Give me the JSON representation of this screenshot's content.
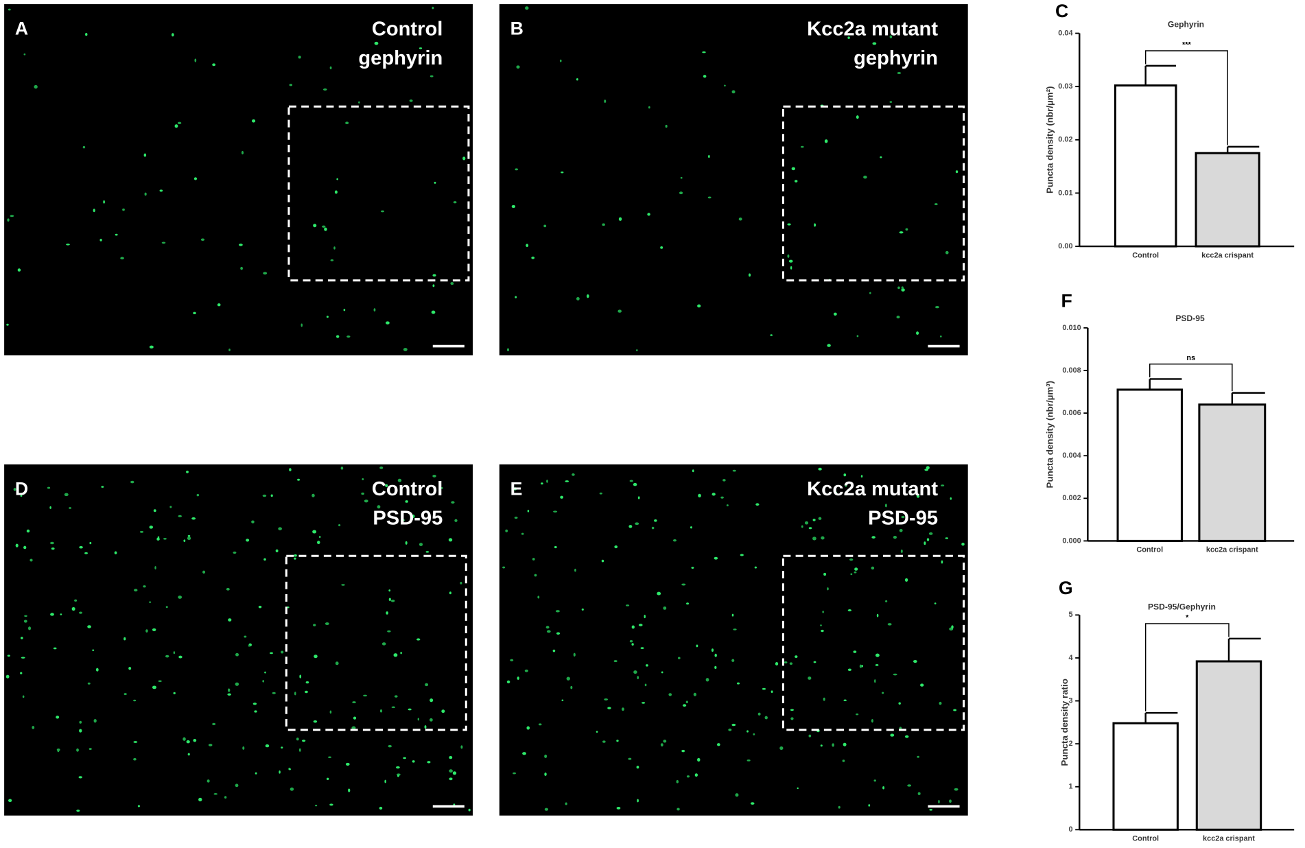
{
  "image_panels": [
    {
      "letter": "A",
      "lines": [
        "Control",
        "gephyrin"
      ]
    },
    {
      "letter": "B",
      "lines": [
        "Kcc2a mutant",
        "gephyrin"
      ]
    },
    {
      "letter": "D",
      "lines": [
        "Control",
        "PSD-95"
      ]
    },
    {
      "letter": "E",
      "lines": [
        "Kcc2a mutant",
        "PSD-95"
      ]
    }
  ],
  "chart_data": [
    {
      "type": "bar",
      "panel_letter": "C",
      "title": "Gephyrin",
      "y_label": "Puncta density (nbr/µm²)",
      "categories": [
        "Control",
        "kcc2a crispant"
      ],
      "values": [
        0.0302,
        0.0175
      ],
      "errors": [
        0.0037,
        0.0012
      ],
      "colors": [
        "#ffffff",
        "#d9d9d9"
      ],
      "ylim": [
        0,
        0.04
      ],
      "yticks": [
        {
          "value": 0,
          "label": "0.00"
        },
        0.01,
        0.02,
        0.03,
        0.04
      ],
      "significance": "***"
    },
    {
      "type": "bar",
      "panel_letter": "F",
      "title": "PSD-95",
      "y_label": "Puncta density (nbr/µm³)",
      "categories": [
        "Control",
        "kcc2a crispant"
      ],
      "values": [
        0.0071,
        0.0064
      ],
      "errors": [
        0.0005,
        0.00055
      ],
      "colors": [
        "#ffffff",
        "#d9d9d9"
      ],
      "ylim": [
        0,
        0.01
      ],
      "yticks": [
        {
          "value": 0,
          "label": "0.000"
        },
        0.002,
        0.004,
        0.006,
        0.008,
        {
          "value": 0.01,
          "label": "0.010"
        }
      ],
      "significance": "ns"
    },
    {
      "type": "bar",
      "panel_letter": "G",
      "title": "PSD-95/Gephyrin",
      "y_label": "Puncta density ratio",
      "categories": [
        "Control",
        "kcc2a crispant"
      ],
      "values": [
        2.48,
        3.92
      ],
      "errors": [
        0.24,
        0.53
      ],
      "colors": [
        "#ffffff",
        "#d9d9d9"
      ],
      "ylim": [
        0,
        5
      ],
      "yticks": [
        0,
        1,
        2,
        3,
        4,
        5
      ],
      "significance": "*"
    }
  ]
}
